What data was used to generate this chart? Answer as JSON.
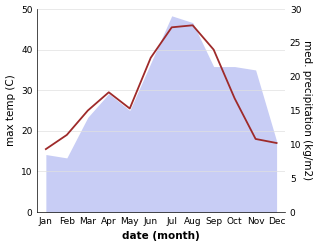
{
  "months": [
    "Jan",
    "Feb",
    "Mar",
    "Apr",
    "May",
    "Jun",
    "Jul",
    "Aug",
    "Sep",
    "Oct",
    "Nov",
    "Dec"
  ],
  "temp_max": [
    15.5,
    19.0,
    25.0,
    29.5,
    25.5,
    38.0,
    45.5,
    46.0,
    40.0,
    28.0,
    18.0,
    17.0
  ],
  "precip": [
    8.5,
    8.0,
    14.0,
    17.5,
    15.0,
    22.0,
    29.0,
    28.0,
    21.5,
    21.5,
    21.0,
    10.5
  ],
  "temp_ylim": [
    0,
    50
  ],
  "precip_ylim": [
    0,
    30
  ],
  "temp_color": "#9e2a2a",
  "precip_fill_color": "#c8cdf5",
  "xlabel": "date (month)",
  "ylabel_left": "max temp (C)",
  "ylabel_right": "med. precipitation (kg/m2)",
  "bg_color": "#ffffff",
  "label_fontsize": 7.5,
  "tick_fontsize": 6.5
}
